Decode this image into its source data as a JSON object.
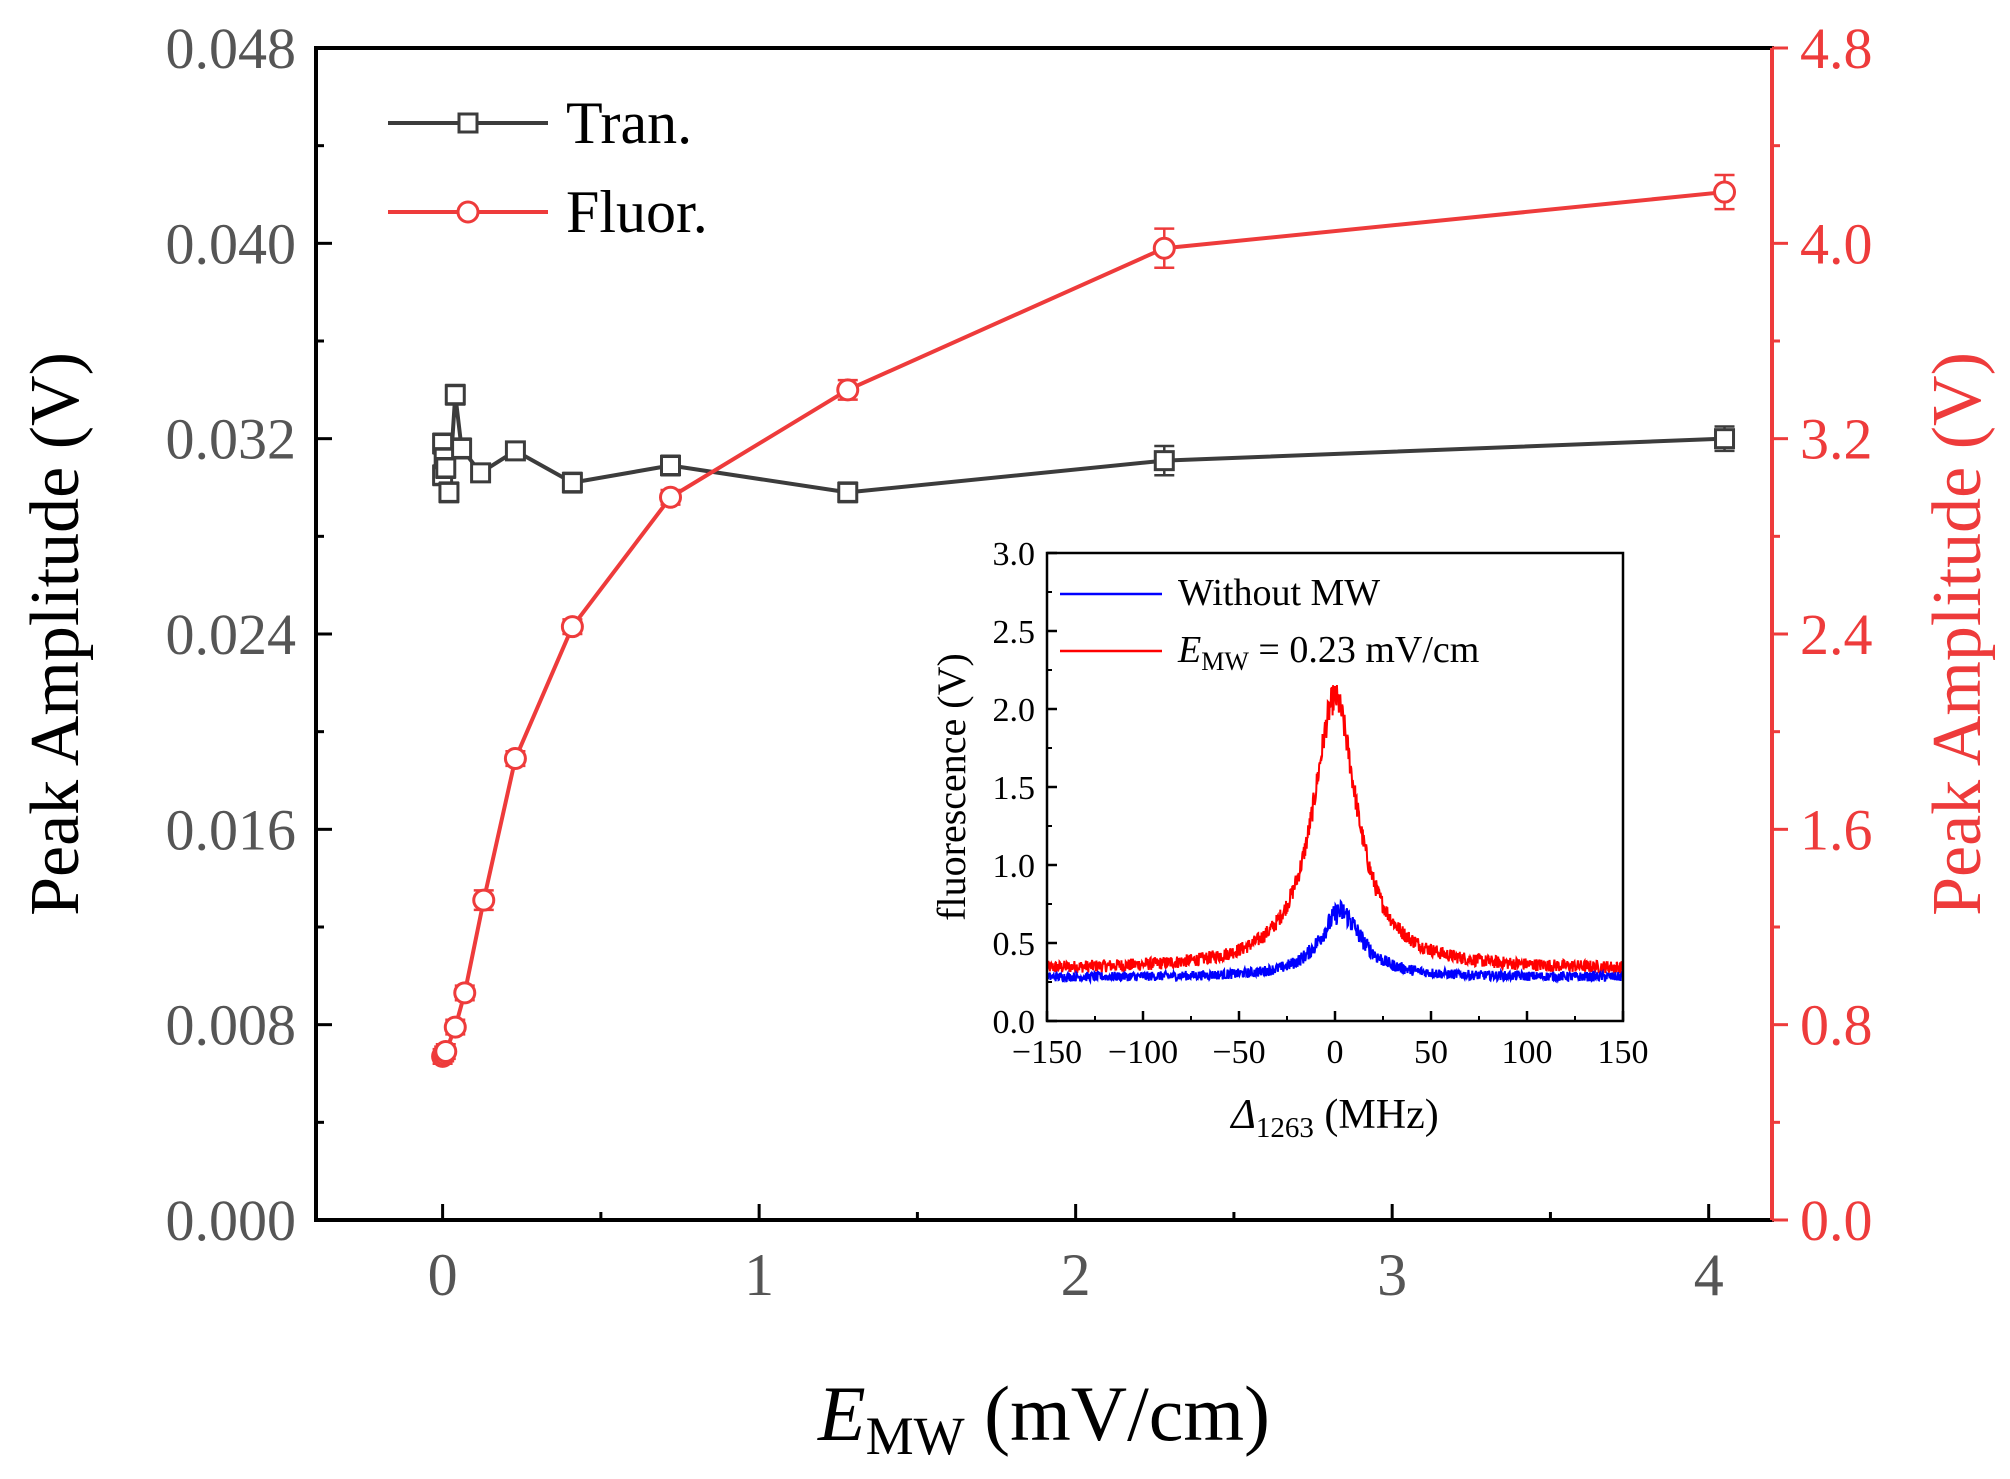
{
  "colors": {
    "axis": "#000000",
    "tran": "#3c3c3c",
    "fluor": "#ee3b3b",
    "right_axis": "#ee3b3b",
    "tick_left": "#555555",
    "inset_blue": "#0000ff",
    "inset_red": "#ff0000"
  },
  "chart_data": [
    {
      "type": "line",
      "name": "main",
      "xlabel_main": "E",
      "xlabel_sub": "MW",
      "xlabel_unit": " (mV/cm)",
      "ylabel_left": "Peak Amplitude (V)",
      "ylabel_right": "Peak Amplitude (V)",
      "xlim": [
        -0.4,
        4.2
      ],
      "ylim_left": [
        0.0,
        0.048
      ],
      "ylim_right": [
        0.0,
        4.8
      ],
      "x_ticks": [
        0,
        1,
        2,
        3,
        4
      ],
      "x_tick_labels": [
        "0",
        "1",
        "2",
        "3",
        "4"
      ],
      "y_left_ticks": [
        0.0,
        0.008,
        0.016,
        0.024,
        0.032,
        0.04,
        0.048
      ],
      "y_left_tick_labels": [
        "0.000",
        "0.008",
        "0.016",
        "0.024",
        "0.032",
        "0.040",
        "0.048"
      ],
      "y_right_ticks": [
        0.0,
        0.8,
        1.6,
        2.4,
        3.2,
        4.0,
        4.8
      ],
      "y_right_tick_labels": [
        "0.0",
        "0.8",
        "1.6",
        "2.4",
        "3.2",
        "4.0",
        "4.8"
      ],
      "legend": {
        "position": "top-left",
        "entries": [
          "Tran.",
          "Fluor."
        ]
      },
      "series": [
        {
          "name": "Tran.",
          "axis": "left",
          "marker": "square",
          "x": [
            0.0,
            0.0,
            0.005,
            0.01,
            0.02,
            0.04,
            0.06,
            0.12,
            0.23,
            0.41,
            0.72,
            1.28,
            2.28,
            4.05
          ],
          "y": [
            0.0305,
            0.0318,
            0.0312,
            0.0308,
            0.0298,
            0.0338,
            0.0316,
            0.0306,
            0.0315,
            0.0302,
            0.0309,
            0.0298,
            0.0311,
            0.032
          ],
          "err": [
            0.0004,
            0.0004,
            0.0004,
            0.0004,
            0.0004,
            0.0004,
            0.0004,
            0.0003,
            0.0003,
            0.0004,
            0.0004,
            0.0004,
            0.0006,
            0.0005
          ]
        },
        {
          "name": "Fluor.",
          "axis": "right",
          "marker": "circle",
          "x": [
            0.0,
            0.005,
            0.01,
            0.04,
            0.07,
            0.13,
            0.23,
            0.41,
            0.72,
            1.28,
            2.28,
            4.05
          ],
          "y": [
            0.67,
            0.68,
            0.69,
            0.79,
            0.93,
            1.31,
            1.89,
            2.43,
            2.96,
            3.4,
            3.98,
            4.21
          ],
          "err": [
            0.03,
            0.03,
            0.03,
            0.03,
            0.03,
            0.04,
            0.03,
            0.03,
            0.03,
            0.04,
            0.08,
            0.07
          ]
        }
      ]
    },
    {
      "type": "line",
      "name": "inset",
      "xlabel_main": "Δ",
      "xlabel_sub": "1263",
      "xlabel_unit": " (MHz)",
      "ylabel": "fluorescence (V)",
      "xlim": [
        -150,
        150
      ],
      "ylim": [
        0.0,
        3.0
      ],
      "x_ticks": [
        -150,
        -100,
        -50,
        0,
        50,
        100,
        150
      ],
      "x_tick_labels": [
        "−150",
        "−100",
        "−50",
        "0",
        "50",
        "100",
        "150"
      ],
      "y_ticks": [
        0.0,
        0.5,
        1.0,
        1.5,
        2.0,
        2.5,
        3.0
      ],
      "y_tick_labels": [
        "0.0",
        "0.5",
        "1.0",
        "1.5",
        "2.0",
        "2.5",
        "3.0"
      ],
      "legend": {
        "position": "top-left",
        "entries": [
          "Without MW",
          "E_MW = 0.23 mV/cm"
        ],
        "label_without": "Without MW",
        "label_emw_main": "E",
        "label_emw_sub": "MW",
        "label_emw_rest": " = 0.23 mV/cm"
      },
      "series": [
        {
          "name": "Without MW",
          "shape": "lorentzian",
          "center_MHz": 3,
          "half_width_MHz": 13,
          "baseline": 0.28,
          "peak": 0.7,
          "noise": 0.03
        },
        {
          "name": "E_MW = 0.23 mV/cm",
          "shape": "lorentzian",
          "center_MHz": 0,
          "half_width_MHz": 14,
          "baseline": 0.33,
          "peak": 2.07,
          "noise": 0.04
        }
      ]
    }
  ]
}
